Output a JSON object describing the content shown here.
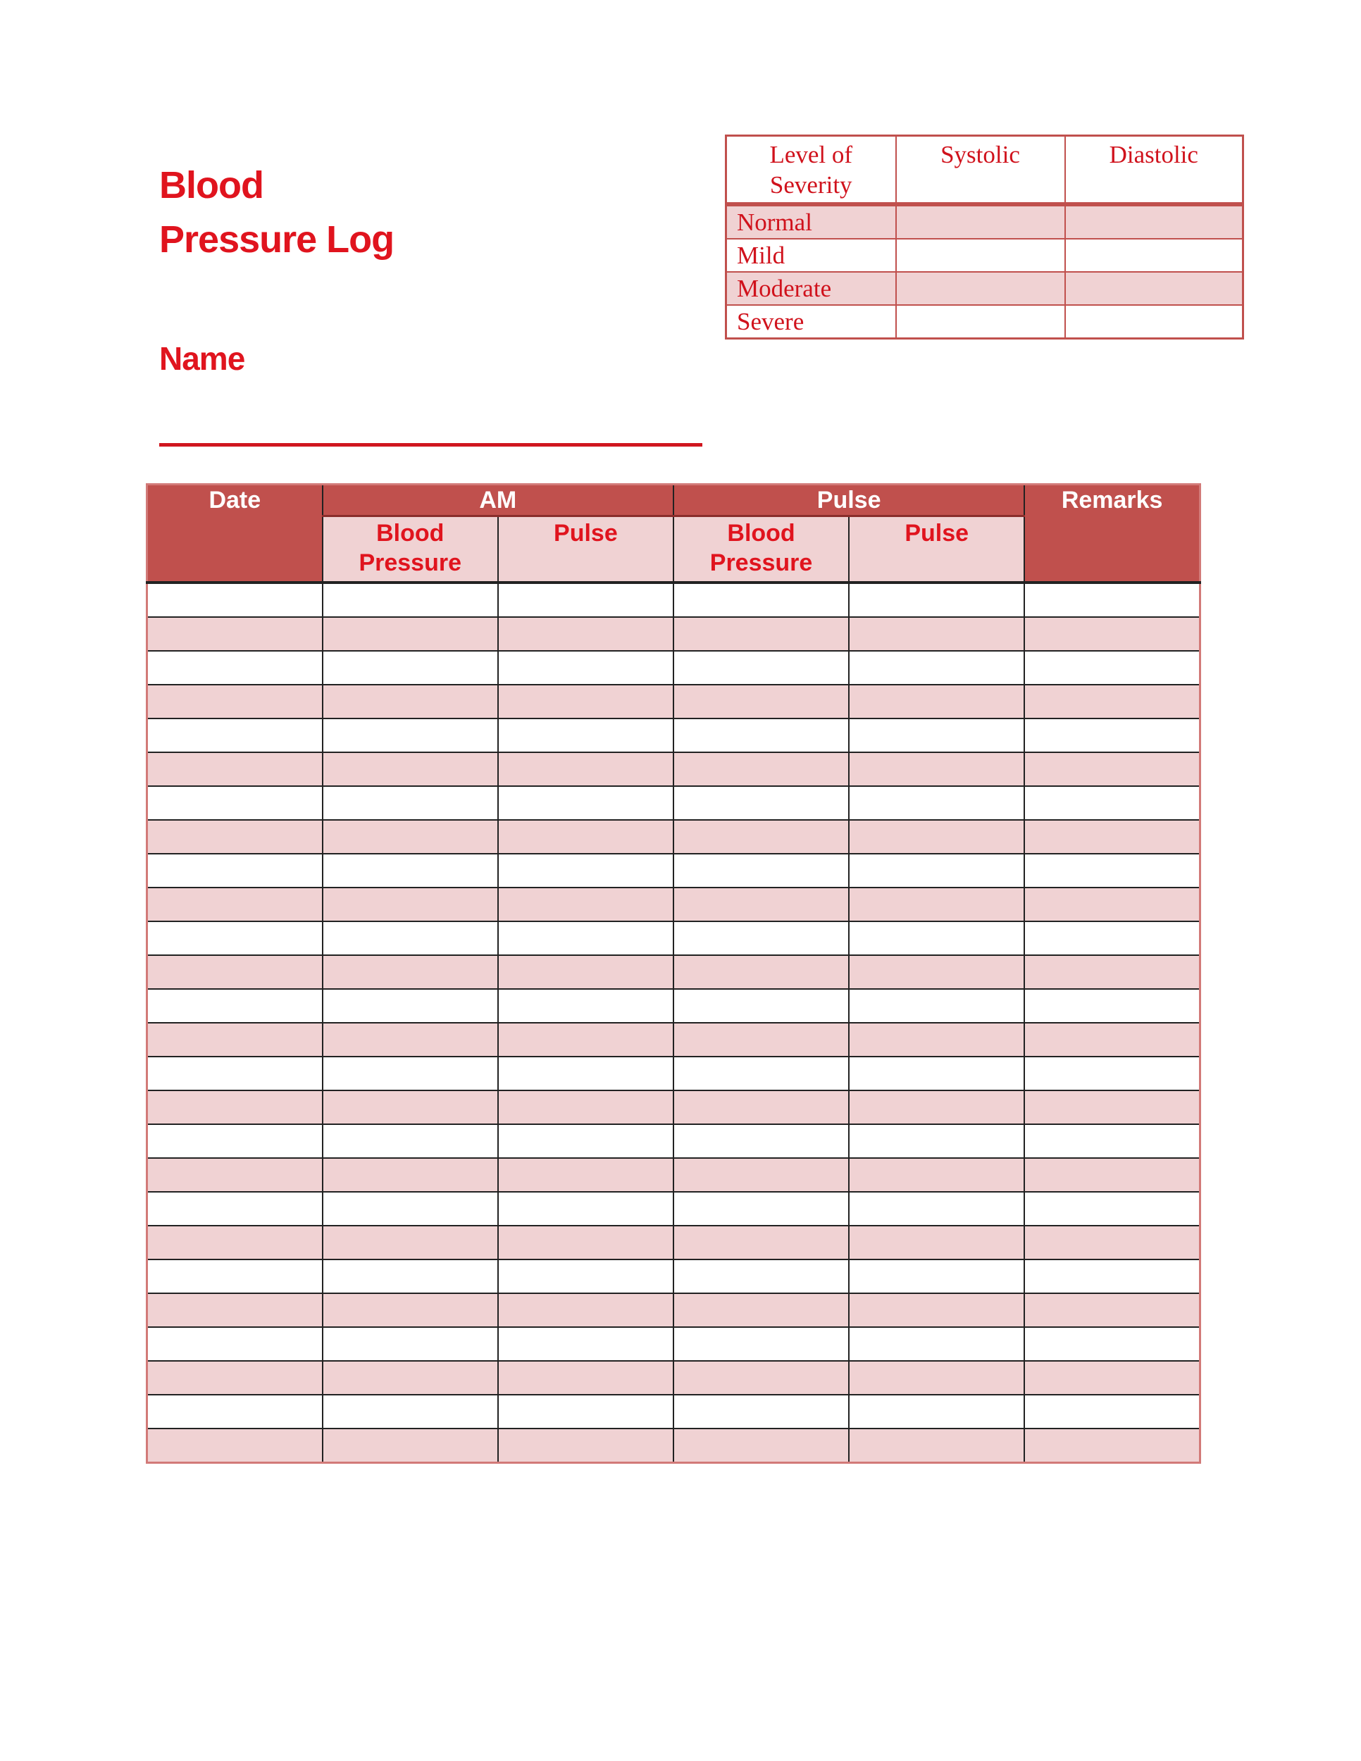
{
  "title_line1": "Blood",
  "title_line2": "Pressure Log",
  "name_label": "Name",
  "colors": {
    "accent": "#e0141e",
    "header_bg": "#c0504d",
    "row_alt": "#f0d2d3"
  },
  "severity_table": {
    "headers": [
      "Level of Severity",
      "Systolic",
      "Diastolic"
    ],
    "rows": [
      {
        "level": "Normal",
        "systolic": "",
        "diastolic": ""
      },
      {
        "level": "Mild",
        "systolic": "",
        "diastolic": ""
      },
      {
        "level": "Moderate",
        "systolic": "",
        "diastolic": ""
      },
      {
        "level": "Severe",
        "systolic": "",
        "diastolic": ""
      }
    ]
  },
  "log_table": {
    "date": "Date",
    "am": "AM",
    "pulse_group": "Pulse",
    "remarks": "Remarks",
    "sub": [
      "Blood Pressure",
      "Pulse",
      "Blood Pressure",
      "Pulse"
    ],
    "blank_rows": 26
  }
}
